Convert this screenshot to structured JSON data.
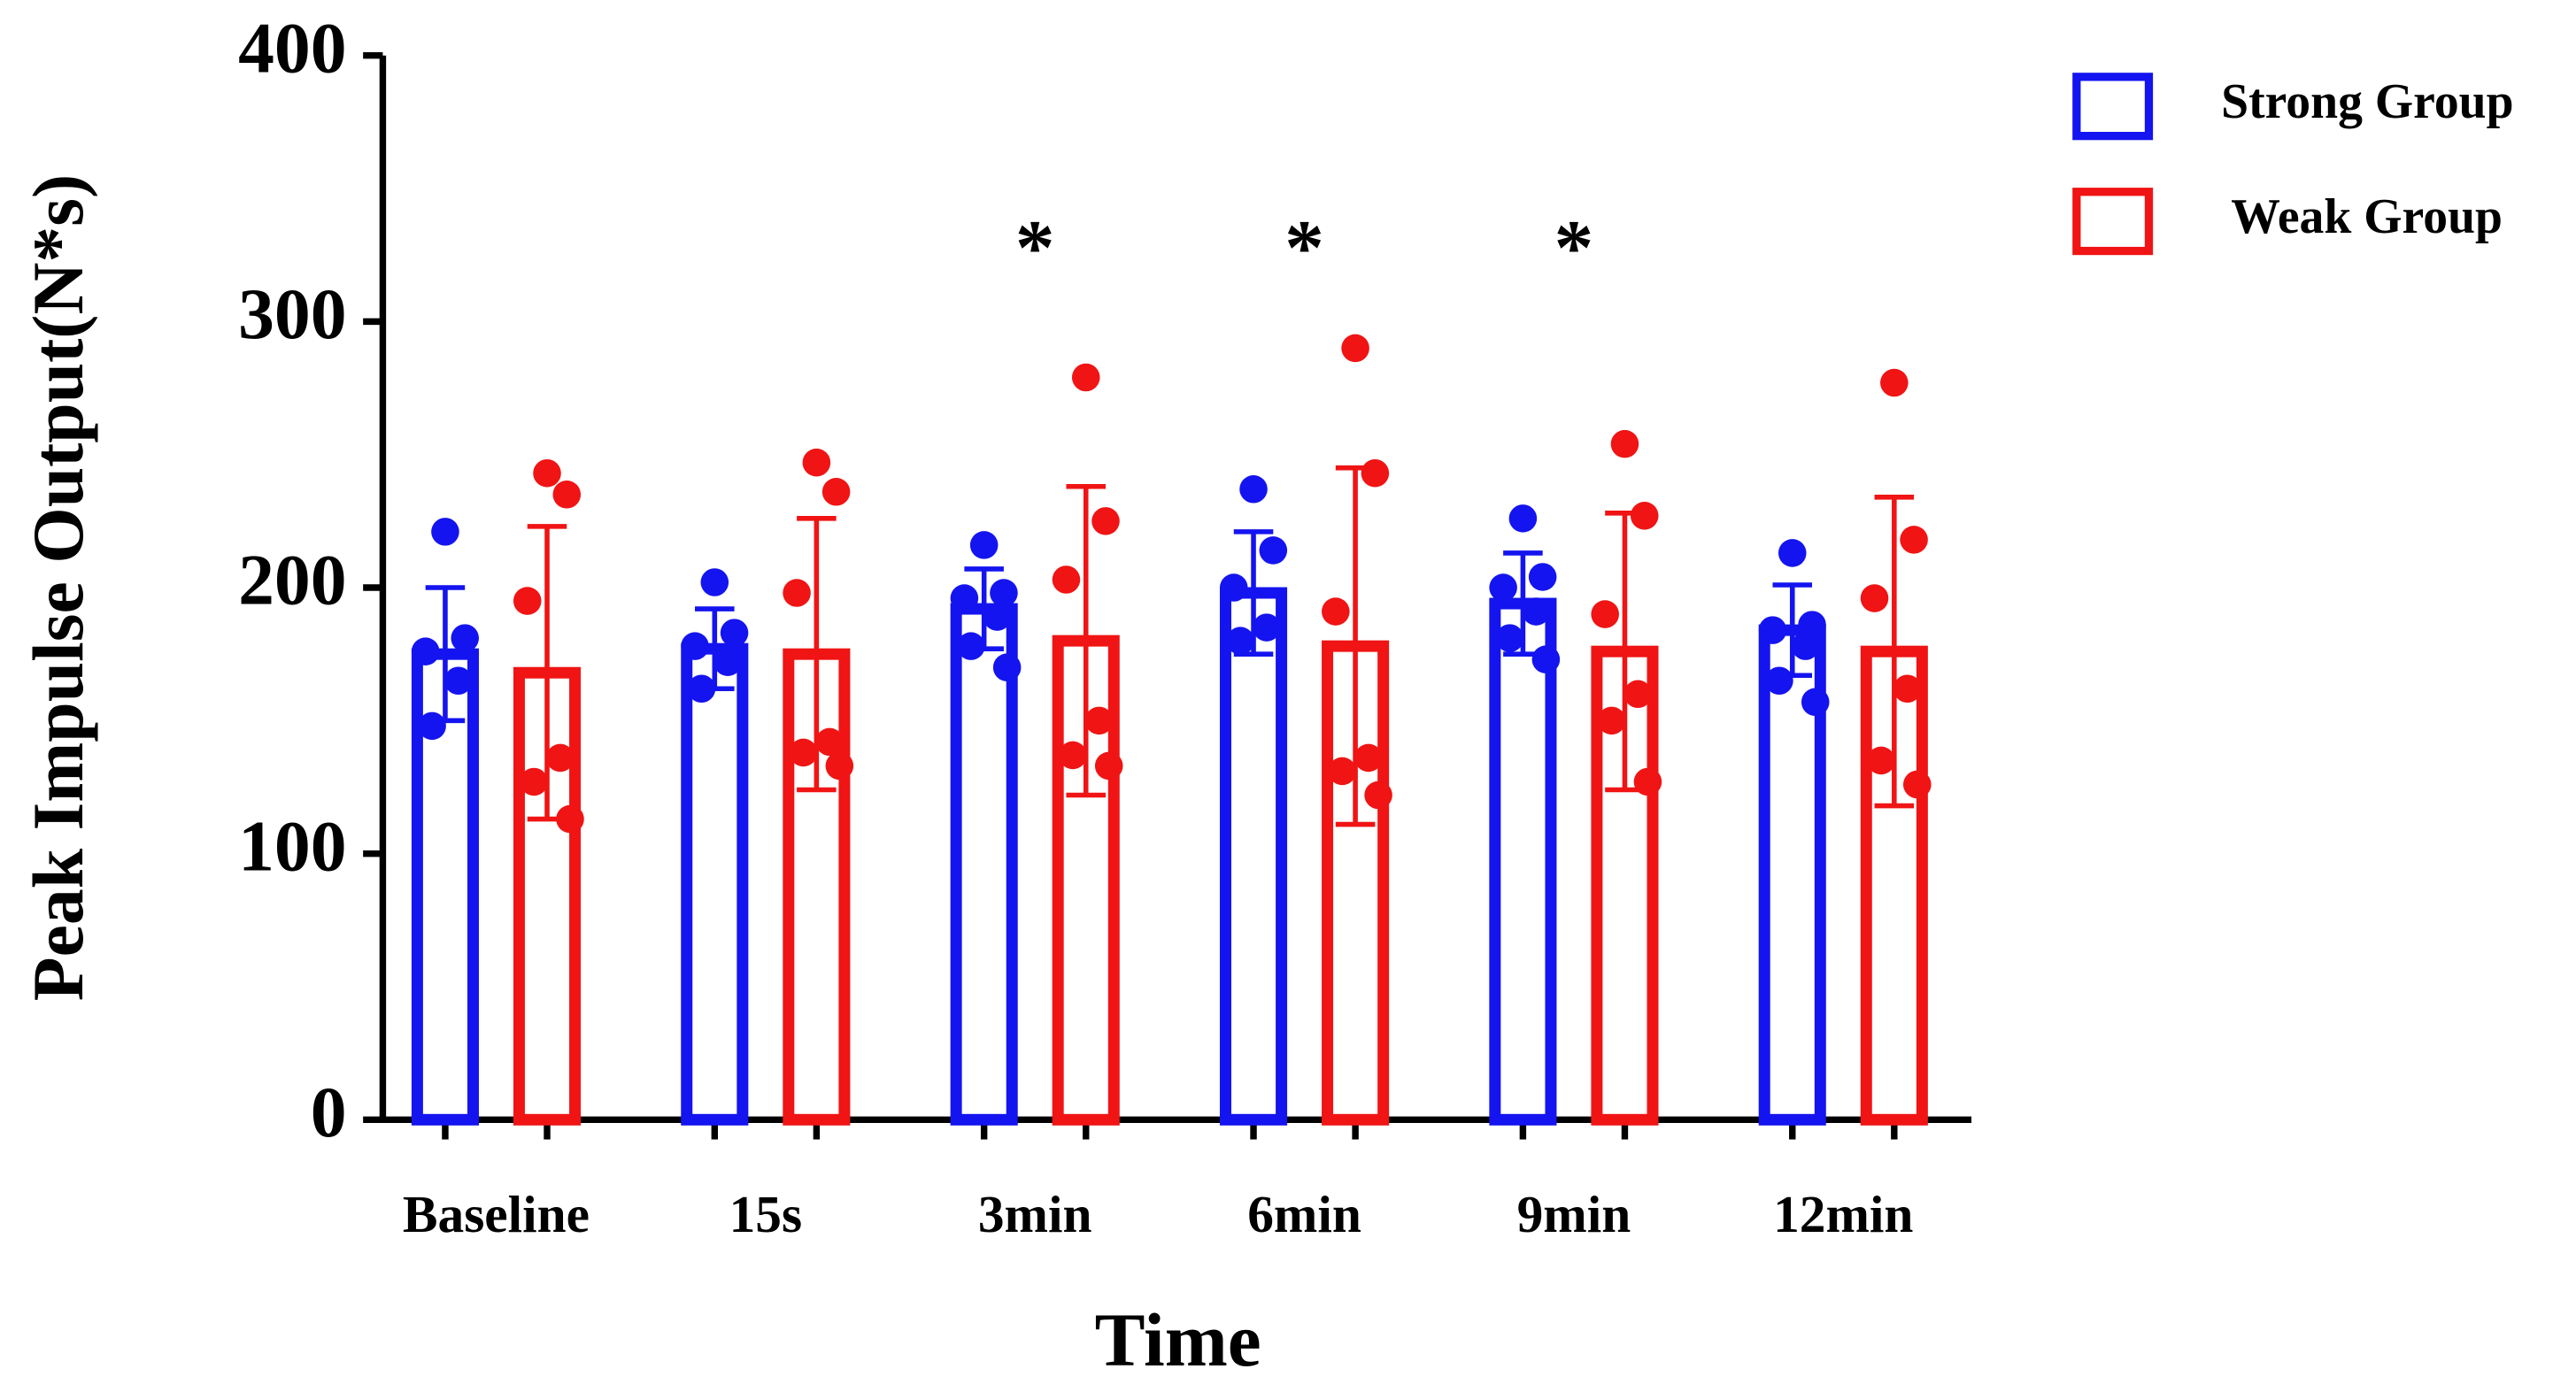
{
  "chart_data": {
    "type": "bar",
    "y_label": "Peak Impulse Output(N*s)",
    "x_label": "Time",
    "categories": [
      "Baseline",
      "15s",
      "3min",
      "6min",
      "9min",
      "12min"
    ],
    "series": [
      {
        "name": "Strong Group",
        "color": "#1414f0",
        "values": [
          175,
          177,
          192,
          198,
          194,
          184
        ],
        "errors": [
          25,
          15,
          15,
          23,
          19,
          17
        ],
        "points": [
          [
            221,
            181,
            176,
            165,
            148
          ],
          [
            202,
            183,
            178,
            172,
            162
          ],
          [
            216,
            198,
            196,
            189,
            178,
            170
          ],
          [
            237,
            214,
            200,
            185,
            180
          ],
          [
            226,
            204,
            200,
            191,
            181,
            173
          ],
          [
            213,
            186,
            184,
            178,
            165,
            157
          ]
        ]
      },
      {
        "name": "Weak Group",
        "color": "#f01414",
        "values": [
          168,
          175,
          180,
          178,
          176,
          176
        ],
        "errors": [
          55,
          51,
          58,
          67,
          52,
          58
        ],
        "points": [
          [
            243,
            235,
            195,
            136,
            127,
            113
          ],
          [
            247,
            236,
            198,
            142,
            138,
            133
          ],
          [
            279,
            225,
            203,
            150,
            137,
            133
          ],
          [
            290,
            243,
            191,
            136,
            131,
            122
          ],
          [
            254,
            227,
            190,
            160,
            150,
            127
          ],
          [
            277,
            218,
            196,
            162,
            135,
            126
          ]
        ]
      }
    ],
    "ylim": [
      0,
      400
    ],
    "yticks": [
      0,
      100,
      200,
      300,
      400
    ],
    "annotations": [
      {
        "text": "*",
        "category": "3min"
      },
      {
        "text": "*",
        "category": "6min"
      },
      {
        "text": "*",
        "category": "9min"
      }
    ],
    "legend": "top-right"
  }
}
